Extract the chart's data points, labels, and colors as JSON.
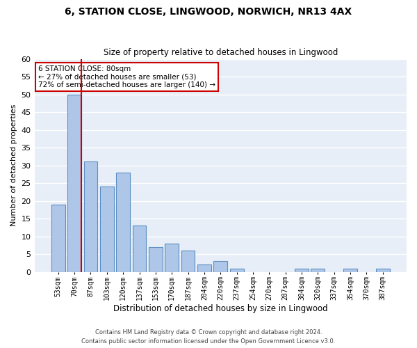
{
  "title1": "6, STATION CLOSE, LINGWOOD, NORWICH, NR13 4AX",
  "title2": "Size of property relative to detached houses in Lingwood",
  "xlabel": "Distribution of detached houses by size in Lingwood",
  "ylabel": "Number of detached properties",
  "bar_labels": [
    "53sqm",
    "70sqm",
    "87sqm",
    "103sqm",
    "120sqm",
    "137sqm",
    "153sqm",
    "170sqm",
    "187sqm",
    "204sqm",
    "220sqm",
    "237sqm",
    "254sqm",
    "270sqm",
    "287sqm",
    "304sqm",
    "320sqm",
    "337sqm",
    "354sqm",
    "370sqm",
    "387sqm"
  ],
  "bar_values": [
    19,
    50,
    31,
    24,
    28,
    13,
    7,
    8,
    6,
    2,
    3,
    1,
    0,
    0,
    0,
    1,
    1,
    0,
    1,
    0,
    1
  ],
  "bar_color": "#aec6e8",
  "bar_edge_color": "#5a8fc2",
  "background_color": "#e8eef7",
  "grid_color": "#ffffff",
  "ylim": [
    0,
    60
  ],
  "yticks": [
    0,
    5,
    10,
    15,
    20,
    25,
    30,
    35,
    40,
    45,
    50,
    55,
    60
  ],
  "annotation_box_text": "6 STATION CLOSE: 80sqm\n← 27% of detached houses are smaller (53)\n72% of semi-detached houses are larger (140) →",
  "annotation_box_color": "#ffffff",
  "annotation_box_edge_color": "#cc0000",
  "vline_color": "#cc0000",
  "vline_x_index": 1,
  "footer1": "Contains HM Land Registry data © Crown copyright and database right 2024.",
  "footer2": "Contains public sector information licensed under the Open Government Licence v3.0."
}
